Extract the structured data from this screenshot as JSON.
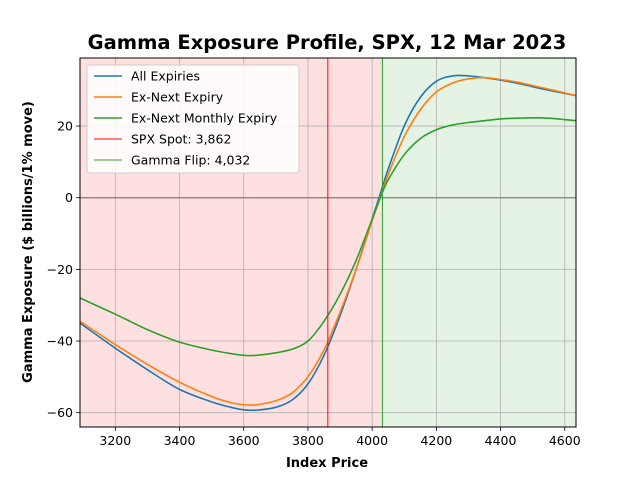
{
  "chart_data": {
    "type": "line",
    "title": "Gamma Exposure Profile, SPX, 12 Mar 2023",
    "xlabel": "Index Price",
    "ylabel": "Gamma Exposure ($ billions/1% move)",
    "xlim": [
      3090,
      4635
    ],
    "ylim": [
      -64,
      39
    ],
    "xticks": [
      3200,
      3400,
      3600,
      3800,
      4000,
      4200,
      4400,
      4600
    ],
    "yticks": [
      -60,
      -40,
      -20,
      0,
      20
    ],
    "grid": true,
    "legend_position": "top-left",
    "x": [
      3090,
      3200,
      3300,
      3400,
      3500,
      3560,
      3600,
      3640,
      3700,
      3750,
      3800,
      3850,
      3900,
      3950,
      4000,
      4032,
      4050,
      4100,
      4150,
      4200,
      4250,
      4300,
      4350,
      4400,
      4450,
      4500,
      4550,
      4635
    ],
    "series": [
      {
        "name": "All Expiries",
        "color": "#1f77b4",
        "values": [
          -35,
          -42,
          -48,
          -53.5,
          -57,
          -58.5,
          -59.2,
          -59.3,
          -58.5,
          -56.5,
          -52,
          -44,
          -33,
          -20,
          -6,
          3,
          8,
          20,
          28,
          32.5,
          34,
          34,
          33.5,
          32.8,
          32,
          31,
          30,
          28.5
        ]
      },
      {
        "name": "Ex-Next Expiry",
        "color": "#ff7f0e",
        "values": [
          -34.5,
          -41,
          -46.5,
          -51.5,
          -55.5,
          -57.2,
          -57.8,
          -57.8,
          -56.7,
          -54.5,
          -50,
          -42.5,
          -32,
          -20,
          -6.5,
          2,
          6.5,
          17,
          24.5,
          29.5,
          32,
          33.2,
          33.5,
          33,
          32.3,
          31.3,
          30.3,
          28.5
        ]
      },
      {
        "name": "Ex-Next Monthly Expiry",
        "color": "#2ca02c",
        "values": [
          -28,
          -32.5,
          -36.8,
          -40.3,
          -42.5,
          -43.5,
          -44,
          -44,
          -43.3,
          -42.3,
          -40,
          -34.5,
          -27,
          -17.5,
          -6,
          1.5,
          5,
          12,
          16.5,
          19,
          20.3,
          21,
          21.5,
          22,
          22.2,
          22.3,
          22.2,
          21.5
        ]
      }
    ],
    "vlines": [
      {
        "name": "SPX Spot: 3,862",
        "x": 3862,
        "color": "#ff0000"
      },
      {
        "name": "Gamma Flip: 4,032",
        "x": 4032,
        "color": "#2ca02c"
      }
    ],
    "regions": [
      {
        "from": 3090,
        "to": 4032,
        "color": "#ff0000",
        "opacity": 0.12
      },
      {
        "from": 4032,
        "to": 4635,
        "color": "#2ca02c",
        "opacity": 0.12
      }
    ],
    "zero_line_color": "#808080"
  }
}
